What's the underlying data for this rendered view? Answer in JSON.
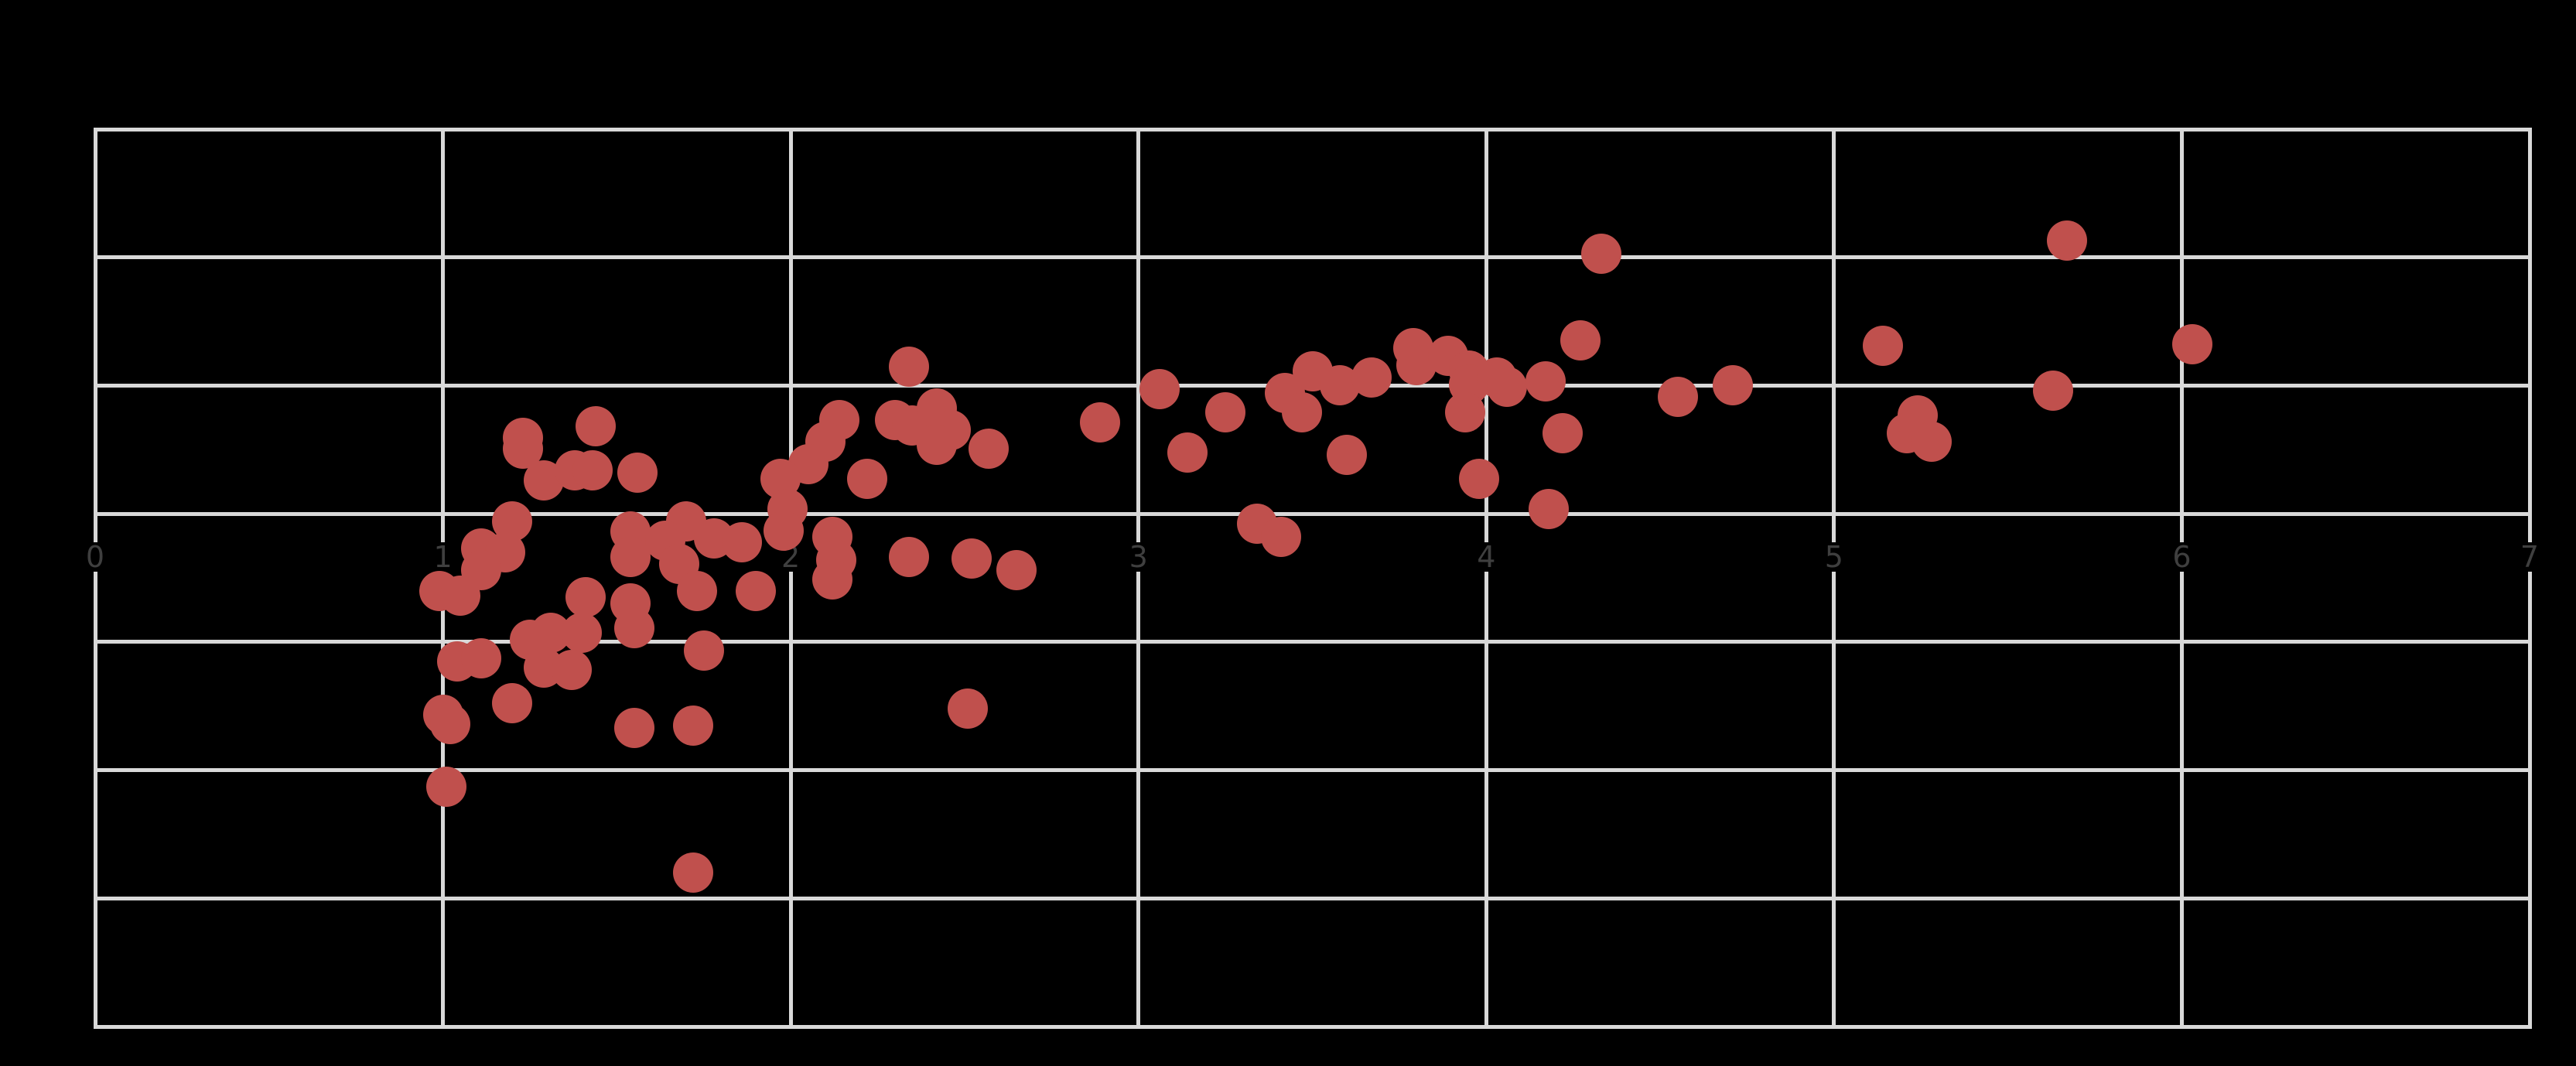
{
  "figure": {
    "background_color": "#000000"
  },
  "chart_data": {
    "type": "scatter",
    "title": "",
    "xlabel": "",
    "ylabel": "",
    "xlim": [
      0,
      7
    ],
    "ylim": [
      -4,
      3
    ],
    "grid": true,
    "x_gridlines": [
      0,
      1,
      2,
      3,
      4,
      5,
      6,
      7
    ],
    "y_gridlines": [
      -4,
      -3,
      -2,
      -1,
      0,
      1,
      2,
      3
    ],
    "x_ticks": [
      0,
      1,
      2,
      3,
      4,
      5,
      6,
      7
    ],
    "x_tick_labels": [
      "0",
      "1",
      "2",
      "3",
      "4",
      "5",
      "6",
      "7"
    ],
    "x_tick_label_row_y": -0.33,
    "y_tick_labels_visible": false,
    "legend": "none",
    "colors": {
      "point_fill": "#C0504D",
      "grid_line": "#D9D9D9",
      "tick_label": "#3F3F3F",
      "panel_background": "#000000"
    },
    "points": [
      [
        1.23,
        0.59
      ],
      [
        1.23,
        0.51
      ],
      [
        1.44,
        0.68
      ],
      [
        1.29,
        0.26
      ],
      [
        1.38,
        0.34
      ],
      [
        1.43,
        0.34
      ],
      [
        1.56,
        0.32
      ],
      [
        1.2,
        -0.06
      ],
      [
        1.11,
        -0.27
      ],
      [
        1.18,
        -0.3
      ],
      [
        1.11,
        -0.44
      ],
      [
        0.99,
        -0.6
      ],
      [
        1.05,
        -0.64
      ],
      [
        1.41,
        -0.65
      ],
      [
        1.25,
        -0.98
      ],
      [
        1.31,
        -0.93
      ],
      [
        1.4,
        -0.93
      ],
      [
        1.04,
        -1.15
      ],
      [
        1.11,
        -1.13
      ],
      [
        1.29,
        -1.2
      ],
      [
        1.37,
        -1.22
      ],
      [
        1.0,
        -1.57
      ],
      [
        1.02,
        -1.64
      ],
      [
        1.2,
        -1.48
      ],
      [
        1.55,
        -1.67
      ],
      [
        1.72,
        -1.65
      ],
      [
        1.01,
        -2.13
      ],
      [
        1.72,
        -2.8
      ],
      [
        1.7,
        -0.06
      ],
      [
        1.54,
        -0.14
      ],
      [
        1.54,
        -0.34
      ],
      [
        1.64,
        -0.21
      ],
      [
        1.78,
        -0.19
      ],
      [
        1.86,
        -0.22
      ],
      [
        1.68,
        -0.39
      ],
      [
        1.73,
        -0.6
      ],
      [
        1.9,
        -0.6
      ],
      [
        1.54,
        -0.7
      ],
      [
        1.55,
        -0.89
      ],
      [
        1.75,
        -1.07
      ],
      [
        2.34,
        1.15
      ],
      [
        2.14,
        0.73
      ],
      [
        2.3,
        0.73
      ],
      [
        2.35,
        0.69
      ],
      [
        2.42,
        0.82
      ],
      [
        2.46,
        0.65
      ],
      [
        2.1,
        0.56
      ],
      [
        2.05,
        0.39
      ],
      [
        1.97,
        0.27
      ],
      [
        2.22,
        0.27
      ],
      [
        1.99,
        0.04
      ],
      [
        1.98,
        -0.13
      ],
      [
        2.12,
        -0.18
      ],
      [
        2.13,
        -0.36
      ],
      [
        2.12,
        -0.51
      ],
      [
        2.34,
        -0.34
      ],
      [
        2.42,
        0.54
      ],
      [
        2.57,
        0.51
      ],
      [
        2.89,
        0.71
      ],
      [
        3.06,
        0.97
      ],
      [
        3.14,
        0.48
      ],
      [
        3.25,
        0.79
      ],
      [
        3.42,
        0.94
      ],
      [
        3.47,
        0.79
      ],
      [
        3.5,
        1.11
      ],
      [
        3.58,
        1.0
      ],
      [
        3.67,
        1.06
      ],
      [
        3.6,
        0.46
      ],
      [
        2.52,
        -0.35
      ],
      [
        2.65,
        -0.44
      ],
      [
        3.34,
        -0.08
      ],
      [
        3.41,
        -0.18
      ],
      [
        2.51,
        -1.52
      ],
      [
        4.33,
        2.03
      ],
      [
        3.79,
        1.29
      ],
      [
        3.8,
        1.16
      ],
      [
        3.89,
        1.23
      ],
      [
        3.95,
        1.12
      ],
      [
        3.95,
        1.01
      ],
      [
        4.03,
        1.06
      ],
      [
        4.06,
        0.99
      ],
      [
        4.17,
        1.03
      ],
      [
        3.94,
        0.79
      ],
      [
        4.27,
        1.35
      ],
      [
        4.22,
        0.63
      ],
      [
        3.98,
        0.27
      ],
      [
        4.18,
        0.04
      ],
      [
        4.55,
        0.91
      ],
      [
        4.71,
        1.0
      ],
      [
        5.14,
        1.31
      ],
      [
        5.24,
        0.77
      ],
      [
        5.21,
        0.63
      ],
      [
        5.28,
        0.56
      ],
      [
        5.67,
        2.13
      ],
      [
        6.03,
        1.32
      ],
      [
        5.63,
        0.96
      ]
    ]
  }
}
